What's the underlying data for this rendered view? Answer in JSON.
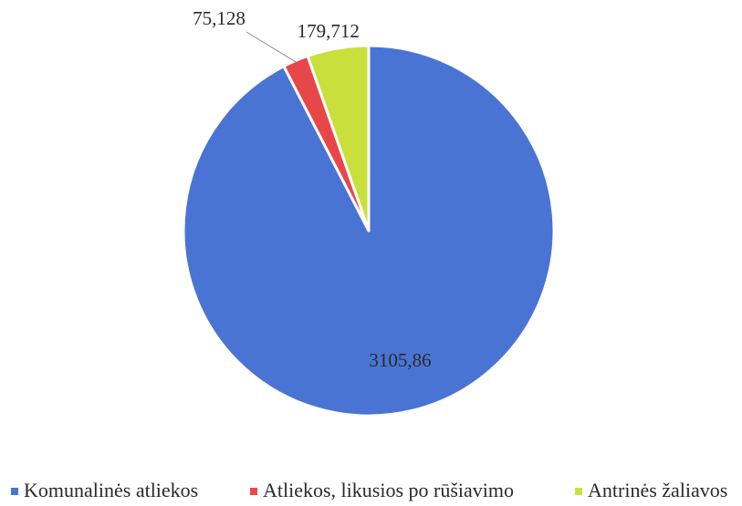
{
  "chart_data": {
    "type": "pie",
    "categories": [
      "Komunalinės atliekos",
      "Atliekos, likusios po rūšiavimo",
      "Antrinės žaliavos"
    ],
    "values": [
      3105.86,
      75.128,
      179.712
    ],
    "data_labels": [
      "3105,86",
      "75,128",
      "179,712"
    ],
    "colors": [
      "#4a74d4",
      "#e8474a",
      "#c9e03c"
    ],
    "start_angle_deg": 0,
    "direction": "clockwise",
    "legend_position": "bottom",
    "grid": false,
    "title": ""
  }
}
